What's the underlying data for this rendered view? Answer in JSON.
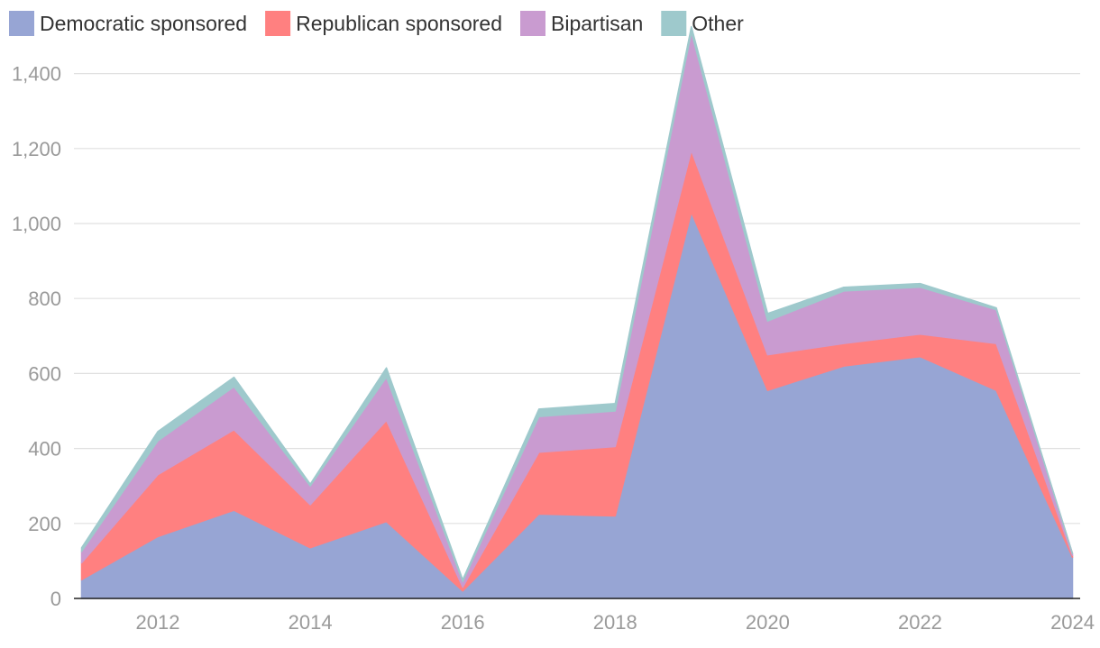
{
  "chart_data": {
    "type": "area",
    "stacked": true,
    "title": "",
    "xlabel": "",
    "ylabel": "",
    "x": [
      2011,
      2012,
      2013,
      2014,
      2015,
      2016,
      2017,
      2018,
      2019,
      2020,
      2021,
      2022,
      2023,
      2024
    ],
    "series": [
      {
        "name": "Democratic sponsored",
        "color": "#97a5d4",
        "values": [
          50,
          165,
          235,
          135,
          205,
          20,
          225,
          220,
          1030,
          555,
          620,
          645,
          555,
          110
        ]
      },
      {
        "name": "Republican sponsored",
        "color": "#ff8080",
        "values": [
          45,
          165,
          215,
          115,
          270,
          10,
          165,
          185,
          165,
          95,
          60,
          60,
          125,
          5
        ]
      },
      {
        "name": "Bipartisan",
        "color": "#c99bd0",
        "values": [
          30,
          90,
          115,
          50,
          115,
          15,
          95,
          95,
          315,
          90,
          140,
          125,
          90,
          5
        ]
      },
      {
        "name": "Other",
        "color": "#9ec9cc",
        "values": [
          10,
          25,
          25,
          5,
          25,
          5,
          20,
          20,
          15,
          20,
          10,
          10,
          5,
          0
        ]
      }
    ],
    "y_ticks": [
      "0",
      "200",
      "400",
      "600",
      "800",
      "1,000",
      "1,200",
      "1,400"
    ],
    "x_ticks": [
      "2012",
      "2014",
      "2016",
      "2018",
      "2020",
      "2022",
      "2024"
    ],
    "ylim": [
      0,
      1500
    ],
    "xlim": [
      2010.9,
      2024.1
    ],
    "grid": true,
    "legend_position": "top-left"
  }
}
